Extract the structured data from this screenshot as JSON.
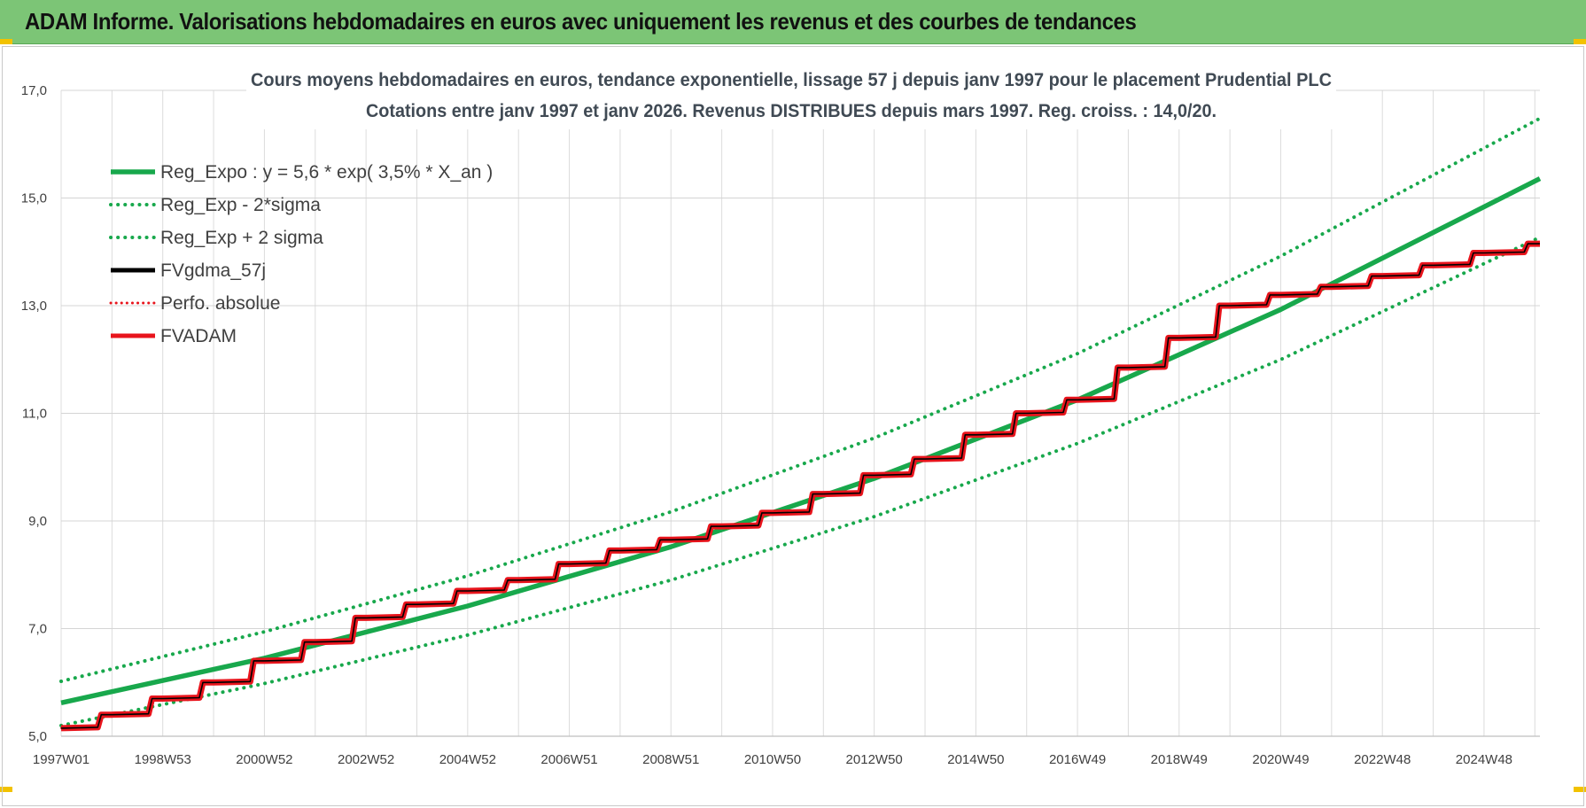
{
  "header": {
    "title": "ADAM Informe. Valorisations hebdomadaires en euros avec uniquement les revenus et des courbes de tendances"
  },
  "colors": {
    "banner": "#7cc576",
    "reg_green": "#18a84c",
    "adam_red": "#e8141c",
    "fv_black": "#000000"
  },
  "chart_data": {
    "type": "line",
    "title": "Cours moyens hebdomadaires en euros, tendance exponentielle, lissage 57 j depuis janv 1997 pour le placement Prudential PLC",
    "subtitle": "Cotations entre janv 1997 et janv 2026. Revenus DISTRIBUES depuis mars 1997. Reg. croiss. : 14,0/20.",
    "xlabel": "",
    "ylabel": "",
    "x_range": [
      1997.0,
      2026.1
    ],
    "ylim": [
      5.0,
      17.0
    ],
    "y_ticks": [
      "5,0",
      "7,0",
      "9,0",
      "11,0",
      "13,0",
      "15,0",
      "17,0"
    ],
    "x_ticks": [
      {
        "label": "1997W01",
        "x": 1997.0
      },
      {
        "label": "1998W53",
        "x": 1999.0
      },
      {
        "label": "2000W52",
        "x": 2001.0
      },
      {
        "label": "2002W52",
        "x": 2003.0
      },
      {
        "label": "2004W52",
        "x": 2005.0
      },
      {
        "label": "2006W51",
        "x": 2007.0
      },
      {
        "label": "2008W51",
        "x": 2009.0
      },
      {
        "label": "2010W50",
        "x": 2011.0
      },
      {
        "label": "2012W50",
        "x": 2013.0
      },
      {
        "label": "2014W50",
        "x": 2015.0
      },
      {
        "label": "2016W49",
        "x": 2017.0
      },
      {
        "label": "2018W49",
        "x": 2019.0
      },
      {
        "label": "2020W49",
        "x": 2021.0
      },
      {
        "label": "2022W48",
        "x": 2023.0
      },
      {
        "label": "2024W48",
        "x": 2025.0
      }
    ],
    "grid": true,
    "legend_position": "top-left",
    "series": [
      {
        "name": "Reg_Expo : y = 5,6 * exp( 3,5% *  X_an )",
        "color": "#18a84c",
        "style": "solid",
        "x": [
          1997.0,
          2001.0,
          2005.0,
          2009.0,
          2013.0,
          2017.0,
          2021.0,
          2026.1
        ],
        "y": [
          5.62,
          6.45,
          7.42,
          8.52,
          9.79,
          11.25,
          12.93,
          15.36
        ]
      },
      {
        "name": "Reg_Exp - 2*sigma",
        "color": "#18a84c",
        "style": "dotted",
        "x": [
          1997.0,
          2001.0,
          2005.0,
          2009.0,
          2013.0,
          2017.0,
          2021.0,
          2026.1
        ],
        "y": [
          5.2,
          5.98,
          6.88,
          7.9,
          9.08,
          10.44,
          12.0,
          14.27
        ]
      },
      {
        "name": "Reg_Exp + 2 sigma",
        "color": "#18a84c",
        "style": "dotted",
        "x": [
          1997.0,
          2001.0,
          2005.0,
          2009.0,
          2013.0,
          2017.0,
          2021.0,
          2026.1
        ],
        "y": [
          6.02,
          6.94,
          7.98,
          9.17,
          10.54,
          12.11,
          13.92,
          16.48
        ]
      },
      {
        "name": "FVgdma_57j",
        "color": "#000000",
        "style": "solid",
        "x": [
          1997.0,
          1998.0,
          1999.0,
          2000.0,
          2001.0,
          2002.0,
          2003.0,
          2004.0,
          2005.0,
          2006.0,
          2007.0,
          2008.0,
          2009.0,
          2010.0,
          2011.0,
          2012.0,
          2013.0,
          2014.0,
          2015.0,
          2016.0,
          2017.0,
          2018.0,
          2019.0,
          2020.0,
          2021.0,
          2022.0,
          2023.0,
          2024.0,
          2025.0,
          2026.1
        ],
        "y": [
          5.15,
          5.4,
          5.7,
          6.0,
          6.4,
          6.75,
          7.2,
          7.45,
          7.7,
          7.9,
          8.2,
          8.45,
          8.65,
          8.9,
          9.15,
          9.5,
          9.85,
          10.15,
          10.6,
          11.0,
          11.25,
          11.85,
          12.4,
          13.0,
          13.2,
          13.35,
          13.55,
          13.75,
          13.98,
          14.15
        ]
      },
      {
        "name": "Perfo. absolue",
        "color": "#e8141c",
        "style": "dotted",
        "x": [
          1997.0,
          1998.0,
          1999.0,
          2000.0,
          2001.0,
          2002.0,
          2003.0,
          2004.0,
          2005.0,
          2006.0,
          2007.0,
          2008.0,
          2009.0,
          2010.0,
          2011.0,
          2012.0,
          2013.0,
          2014.0,
          2015.0,
          2016.0,
          2017.0,
          2018.0,
          2019.0,
          2020.0,
          2021.0,
          2022.0,
          2023.0,
          2024.0,
          2025.0,
          2026.1
        ],
        "y": [
          5.15,
          5.4,
          5.7,
          6.0,
          6.4,
          6.75,
          7.2,
          7.45,
          7.7,
          7.9,
          8.2,
          8.45,
          8.65,
          8.9,
          9.15,
          9.5,
          9.85,
          10.15,
          10.6,
          11.0,
          11.25,
          11.85,
          12.4,
          13.0,
          13.2,
          13.35,
          13.55,
          13.75,
          13.98,
          14.15
        ]
      },
      {
        "name": "FVADAM",
        "color": "#e8141c",
        "style": "solid",
        "x": [
          1997.0,
          1998.0,
          1999.0,
          2000.0,
          2001.0,
          2002.0,
          2003.0,
          2004.0,
          2005.0,
          2006.0,
          2007.0,
          2008.0,
          2009.0,
          2010.0,
          2011.0,
          2012.0,
          2013.0,
          2014.0,
          2015.0,
          2016.0,
          2017.0,
          2018.0,
          2019.0,
          2020.0,
          2021.0,
          2022.0,
          2023.0,
          2024.0,
          2025.0,
          2026.1
        ],
        "y": [
          5.15,
          5.4,
          5.7,
          6.0,
          6.4,
          6.75,
          7.2,
          7.45,
          7.7,
          7.9,
          8.2,
          8.45,
          8.65,
          8.9,
          9.15,
          9.5,
          9.85,
          10.15,
          10.6,
          11.0,
          11.25,
          11.85,
          12.4,
          13.0,
          13.2,
          13.35,
          13.55,
          13.75,
          13.98,
          14.15
        ]
      }
    ]
  }
}
